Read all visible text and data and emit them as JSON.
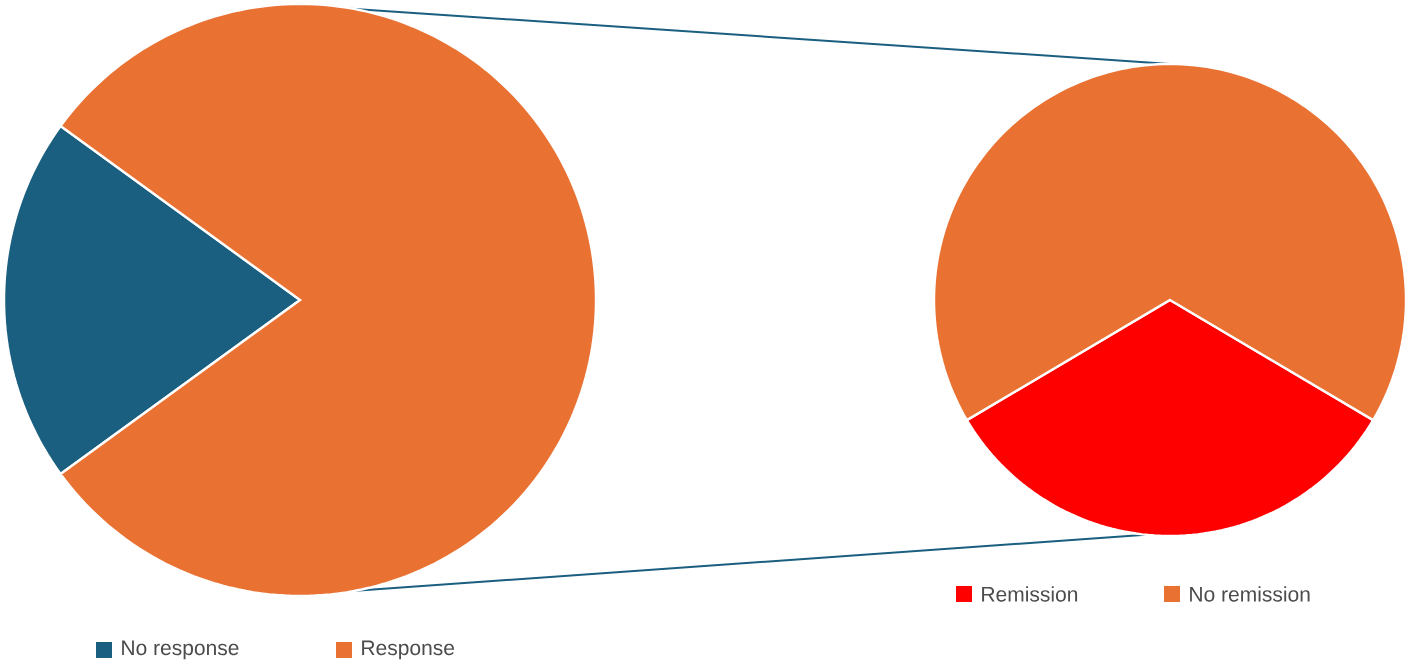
{
  "chart_data": [
    {
      "type": "pie",
      "categories": [
        "No response",
        "Response"
      ],
      "values": [
        20,
        80
      ],
      "colors": [
        "#1a5e80",
        "#e97132"
      ],
      "legend": "bottom"
    },
    {
      "type": "pie",
      "categories": [
        "Remission",
        "No remission"
      ],
      "values": [
        33,
        67
      ],
      "colors": [
        "#ff0000",
        "#e97132"
      ],
      "legend": "bottom"
    }
  ]
}
